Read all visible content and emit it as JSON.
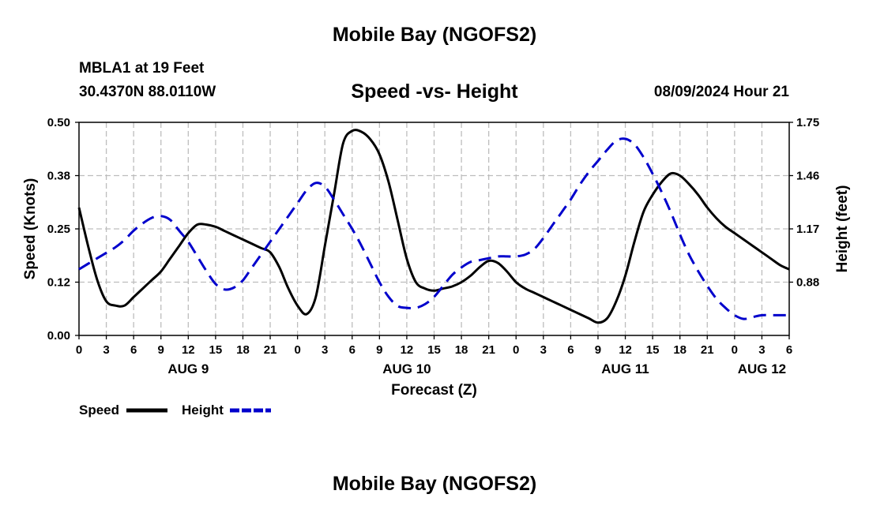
{
  "title": "Mobile Bay (NGOFS2)",
  "footer_title": "Mobile Bay (NGOFS2)",
  "station": "MBLA1 at 19 Feet",
  "coords": "30.4370N  88.0110W",
  "subtitle": "Speed -vs- Height",
  "datetime": "08/09/2024 Hour 21",
  "colors": {
    "speed": "#000000",
    "height": "#0000cc",
    "grid": "#bdbdbd"
  },
  "chart_data": {
    "type": "line",
    "title": "Speed -vs- Height",
    "xlabel": "Forecast (Z)",
    "ylabel": "Speed (Knots)",
    "y2label": "Height (feet)",
    "xlim": [
      0,
      78
    ],
    "ylim": [
      0,
      0.5
    ],
    "y2lim": [
      0.59,
      1.75
    ],
    "grid": true,
    "legend_position": "bottom-left",
    "x_ticks": [
      0,
      3,
      6,
      9,
      12,
      15,
      18,
      21,
      24,
      27,
      30,
      33,
      36,
      39,
      42,
      45,
      48,
      51,
      54,
      57,
      60,
      63,
      66,
      69,
      72,
      75,
      78
    ],
    "x_tick_labels": [
      "0",
      "3",
      "6",
      "9",
      "12",
      "15",
      "18",
      "21",
      "0",
      "3",
      "6",
      "9",
      "12",
      "15",
      "18",
      "21",
      "0",
      "3",
      "6",
      "9",
      "12",
      "15",
      "18",
      "21",
      "0",
      "3",
      "6"
    ],
    "date_labels": [
      {
        "x": 12,
        "label": "AUG 9"
      },
      {
        "x": 36,
        "label": "AUG 10"
      },
      {
        "x": 60,
        "label": "AUG 11"
      },
      {
        "x": 75,
        "label": "AUG 12"
      }
    ],
    "y_ticks": [
      0.0,
      0.125,
      0.25,
      0.375,
      0.5
    ],
    "y_tick_labels": [
      "0.00",
      "0.12",
      "0.25",
      "0.38",
      "0.50"
    ],
    "y2_ticks": [
      0.88,
      1.17,
      1.46,
      1.75
    ],
    "y2_tick_labels": [
      "0.88",
      "1.17",
      "1.46",
      "1.75"
    ],
    "series": [
      {
        "name": "Speed",
        "axis": "left",
        "style": "solid",
        "x": [
          0,
          1,
          2,
          3,
          4,
          5,
          6,
          7,
          8,
          9,
          10,
          11,
          12,
          13,
          14,
          15,
          16,
          17,
          18,
          19,
          20,
          21,
          22,
          23,
          24,
          25,
          26,
          27,
          28,
          29,
          30,
          31,
          32,
          33,
          34,
          35,
          36,
          37,
          38,
          39,
          40,
          41,
          42,
          43,
          44,
          45,
          46,
          47,
          48,
          49,
          50,
          51,
          52,
          53,
          54,
          55,
          56,
          57,
          58,
          59,
          60,
          61,
          62,
          63,
          64,
          65,
          66,
          67,
          68,
          69,
          70,
          71,
          72,
          73,
          74,
          75,
          76,
          77,
          78
        ],
        "values": [
          0.3,
          0.21,
          0.13,
          0.08,
          0.07,
          0.07,
          0.09,
          0.11,
          0.13,
          0.15,
          0.18,
          0.21,
          0.24,
          0.26,
          0.26,
          0.255,
          0.245,
          0.235,
          0.225,
          0.215,
          0.205,
          0.195,
          0.16,
          0.11,
          0.07,
          0.05,
          0.09,
          0.21,
          0.33,
          0.45,
          0.48,
          0.478,
          0.46,
          0.425,
          0.36,
          0.27,
          0.18,
          0.125,
          0.11,
          0.105,
          0.11,
          0.115,
          0.125,
          0.14,
          0.16,
          0.175,
          0.17,
          0.15,
          0.125,
          0.11,
          0.1,
          0.09,
          0.08,
          0.07,
          0.06,
          0.05,
          0.04,
          0.03,
          0.04,
          0.08,
          0.14,
          0.22,
          0.29,
          0.33,
          0.36,
          0.38,
          0.375,
          0.355,
          0.33,
          0.3,
          0.275,
          0.255,
          0.24,
          0.225,
          0.21,
          0.195,
          0.18,
          0.165,
          0.155
        ]
      },
      {
        "name": "Height",
        "axis": "right",
        "style": "dashed",
        "x": [
          0,
          1,
          2,
          3,
          4,
          5,
          6,
          7,
          8,
          9,
          10,
          11,
          12,
          13,
          14,
          15,
          16,
          17,
          18,
          19,
          20,
          21,
          22,
          23,
          24,
          25,
          26,
          27,
          28,
          29,
          30,
          31,
          32,
          33,
          34,
          35,
          36,
          37,
          38,
          39,
          40,
          41,
          42,
          43,
          44,
          45,
          46,
          47,
          48,
          49,
          50,
          51,
          52,
          53,
          54,
          55,
          56,
          57,
          58,
          59,
          60,
          61,
          62,
          63,
          64,
          65,
          66,
          67,
          68,
          69,
          70,
          71,
          72,
          73,
          74,
          75,
          76,
          77,
          78
        ],
        "values": [
          0.95,
          0.98,
          1.01,
          1.04,
          1.07,
          1.11,
          1.16,
          1.2,
          1.23,
          1.24,
          1.22,
          1.16,
          1.1,
          1.02,
          0.94,
          0.87,
          0.84,
          0.85,
          0.89,
          0.96,
          1.03,
          1.1,
          1.17,
          1.24,
          1.31,
          1.38,
          1.42,
          1.4,
          1.33,
          1.25,
          1.17,
          1.08,
          0.98,
          0.88,
          0.8,
          0.75,
          0.74,
          0.74,
          0.76,
          0.8,
          0.86,
          0.92,
          0.96,
          0.99,
          1.0,
          1.01,
          1.02,
          1.02,
          1.02,
          1.03,
          1.06,
          1.12,
          1.19,
          1.26,
          1.33,
          1.41,
          1.48,
          1.54,
          1.6,
          1.65,
          1.66,
          1.63,
          1.56,
          1.47,
          1.37,
          1.26,
          1.14,
          1.03,
          0.94,
          0.86,
          0.79,
          0.74,
          0.7,
          0.68,
          0.69,
          0.7,
          0.7,
          0.7,
          0.7
        ]
      }
    ]
  },
  "legend": {
    "speed_label": "Speed",
    "height_label": "Height"
  }
}
